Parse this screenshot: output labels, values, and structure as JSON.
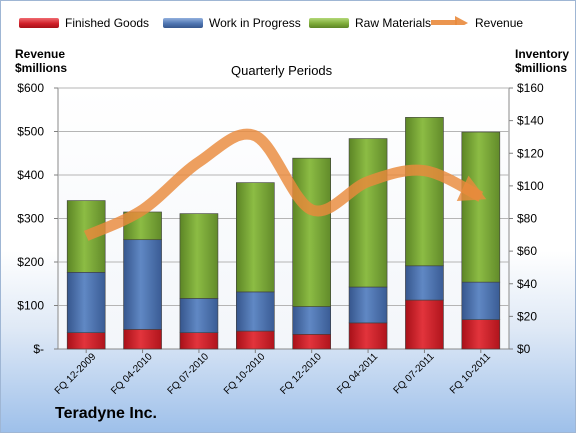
{
  "legend": {
    "finished": "Finished Goods",
    "wip": "Work in Progress",
    "raw": "Raw Materials",
    "revenue": "Revenue"
  },
  "left_axis_title": [
    "Revenue",
    "$millions"
  ],
  "right_axis_title": [
    "Inventory",
    "$millions"
  ],
  "subtitle": "Quarterly Periods",
  "company": "Teradyne Inc.",
  "colors": {
    "finished": "#d0202a",
    "wip": "#4f76b2",
    "raw": "#7fac3a",
    "revenue": "#e98a3c"
  },
  "chart_data": {
    "type": "bar",
    "stacked": true,
    "categories": [
      "FQ 12-2009",
      "FQ 04-2010",
      "FQ 07-2010",
      "FQ 10-2010",
      "FQ 12-2010",
      "FQ 04-2011",
      "FQ 07-2011",
      "FQ 10-2011"
    ],
    "series": [
      {
        "name": "Finished Goods",
        "axis": "right",
        "values": [
          10,
          12,
          10,
          11,
          9,
          16,
          30,
          18
        ]
      },
      {
        "name": "Work in Progress",
        "axis": "right",
        "values": [
          37,
          55,
          21,
          24,
          17,
          22,
          21,
          23
        ]
      },
      {
        "name": "Raw Materials",
        "axis": "right",
        "values": [
          44,
          17,
          52,
          67,
          91,
          91,
          91,
          92
        ]
      },
      {
        "name": "Revenue",
        "axis": "left",
        "type": "line",
        "values": [
          260,
          320,
          430,
          490,
          320,
          385,
          410,
          350
        ]
      }
    ],
    "left_axis": {
      "min": 0,
      "max": 600,
      "ticks": [
        "$-",
        "$100",
        "$200",
        "$300",
        "$400",
        "$500",
        "$600"
      ]
    },
    "right_axis": {
      "min": 0,
      "max": 160,
      "ticks": [
        "$0",
        "$20",
        "$40",
        "$60",
        "$80",
        "$100",
        "$120",
        "$140",
        "$160"
      ]
    },
    "grid": true,
    "legend_position": "top"
  }
}
